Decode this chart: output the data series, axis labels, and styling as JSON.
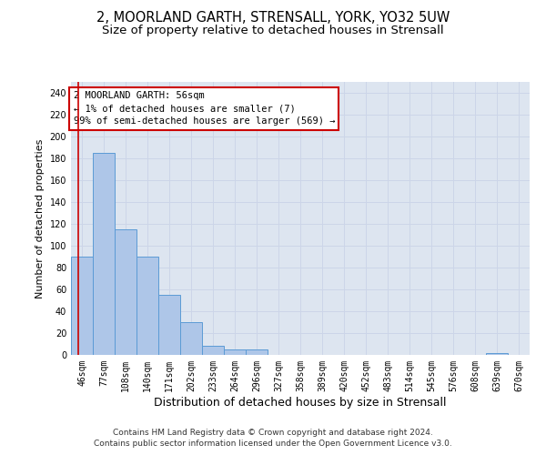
{
  "title_line1": "2, MOORLAND GARTH, STRENSALL, YORK, YO32 5UW",
  "title_line2": "Size of property relative to detached houses in Strensall",
  "xlabel": "Distribution of detached houses by size in Strensall",
  "ylabel": "Number of detached properties",
  "bar_labels": [
    "46sqm",
    "77sqm",
    "108sqm",
    "140sqm",
    "171sqm",
    "202sqm",
    "233sqm",
    "264sqm",
    "296sqm",
    "327sqm",
    "358sqm",
    "389sqm",
    "420sqm",
    "452sqm",
    "483sqm",
    "514sqm",
    "545sqm",
    "576sqm",
    "608sqm",
    "639sqm",
    "670sqm"
  ],
  "bar_values": [
    90,
    185,
    115,
    90,
    55,
    30,
    8,
    5,
    5,
    0,
    0,
    0,
    0,
    0,
    0,
    0,
    0,
    0,
    0,
    2,
    0
  ],
  "bar_color": "#aec6e8",
  "bar_edge_color": "#5b9bd5",
  "annotation_box_text": "2 MOORLAND GARTH: 56sqm\n← 1% of detached houses are smaller (7)\n99% of semi-detached houses are larger (569) →",
  "annotation_box_color": "#ffffff",
  "annotation_box_edge_color": "#cc0000",
  "marker_line_color": "#cc0000",
  "ylim": [
    0,
    250
  ],
  "yticks": [
    0,
    20,
    40,
    60,
    80,
    100,
    120,
    140,
    160,
    180,
    200,
    220,
    240
  ],
  "grid_color": "#ccd5e8",
  "background_color": "#dde5f0",
  "footer_text": "Contains HM Land Registry data © Crown copyright and database right 2024.\nContains public sector information licensed under the Open Government Licence v3.0.",
  "title_fontsize": 10.5,
  "subtitle_fontsize": 9.5,
  "xlabel_fontsize": 9,
  "ylabel_fontsize": 8,
  "tick_fontsize": 7,
  "annotation_fontsize": 7.5,
  "footer_fontsize": 6.5
}
